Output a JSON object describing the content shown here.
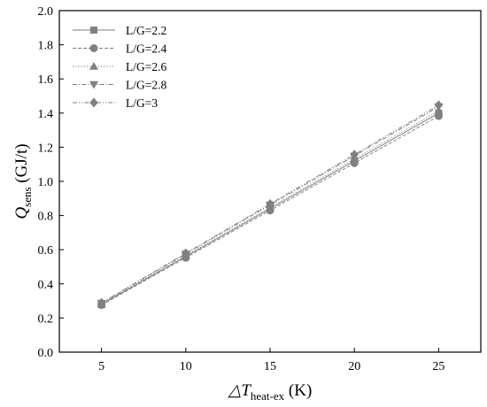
{
  "chart_data": {
    "type": "line",
    "xlabel": {
      "main": "△T",
      "sub": "heat-ex",
      "suffix": " (K)"
    },
    "ylabel": {
      "main": "Q",
      "sub": "sens",
      "suffix": " (GJ/t)"
    },
    "xlim": [
      2.5,
      27.5
    ],
    "ylim": [
      0.0,
      2.0
    ],
    "xticks": [
      5,
      10,
      15,
      20,
      25
    ],
    "yticks": [
      "0.0",
      "0.2",
      "0.4",
      "0.6",
      "0.8",
      "1.0",
      "1.2",
      "1.4",
      "1.6",
      "1.8",
      "2.0"
    ],
    "x": [
      5,
      10,
      15,
      20,
      25
    ],
    "legend_position": "top-left",
    "grid": false,
    "series": [
      {
        "name": "L/G=2.2",
        "marker": "square",
        "dash": "solid",
        "values": [
          0.28,
          0.56,
          0.84,
          1.12,
          1.4
        ]
      },
      {
        "name": "L/G=2.4",
        "marker": "circle",
        "dash": "dashed",
        "values": [
          0.276,
          0.553,
          0.83,
          1.107,
          1.383
        ]
      },
      {
        "name": "L/G=2.6",
        "marker": "triangle-up",
        "dash": "dotted",
        "values": [
          0.282,
          0.565,
          0.848,
          1.131,
          1.413
        ]
      },
      {
        "name": "L/G=2.8",
        "marker": "triangle-down",
        "dash": "dashdot",
        "values": [
          0.287,
          0.575,
          0.862,
          1.149,
          1.437
        ]
      },
      {
        "name": "L/G=3",
        "marker": "diamond",
        "dash": "dashdotdot",
        "values": [
          0.289,
          0.579,
          0.868,
          1.157,
          1.446
        ]
      }
    ],
    "colors": {
      "marker": "#808080",
      "line": "#7a7a7a",
      "axis": "#000000"
    }
  }
}
